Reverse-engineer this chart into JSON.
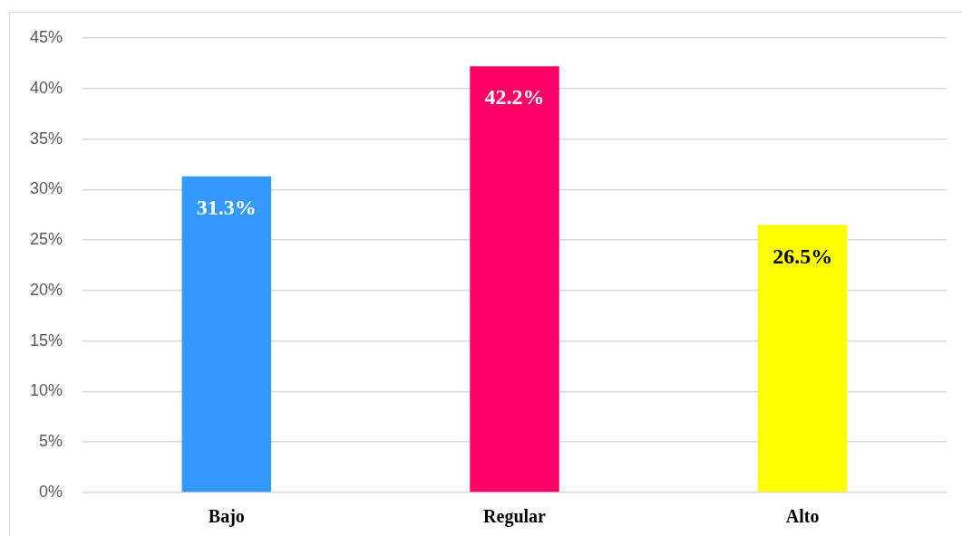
{
  "chart_data": {
    "type": "bar",
    "categories": [
      "Bajo",
      "Regular",
      "Alto"
    ],
    "values": [
      31.3,
      42.2,
      26.5
    ],
    "colors": [
      "#3399ff",
      "#ff0066",
      "#ffff00"
    ],
    "value_labels": [
      "31.3%",
      "42.2%",
      "26.5%"
    ],
    "ylim": [
      0,
      45
    ],
    "yticks": [
      {
        "value": 0,
        "label": "0%"
      },
      {
        "value": 5,
        "label": "5%"
      },
      {
        "value": 10,
        "label": "10%"
      },
      {
        "value": 15,
        "label": "15%"
      },
      {
        "value": 20,
        "label": "20%"
      },
      {
        "value": 25,
        "label": "25%"
      },
      {
        "value": 30,
        "label": "30%"
      },
      {
        "value": 35,
        "label": "35%"
      },
      {
        "value": 40,
        "label": "40%"
      },
      {
        "value": 45,
        "label": "45%"
      }
    ],
    "grid": "y"
  }
}
